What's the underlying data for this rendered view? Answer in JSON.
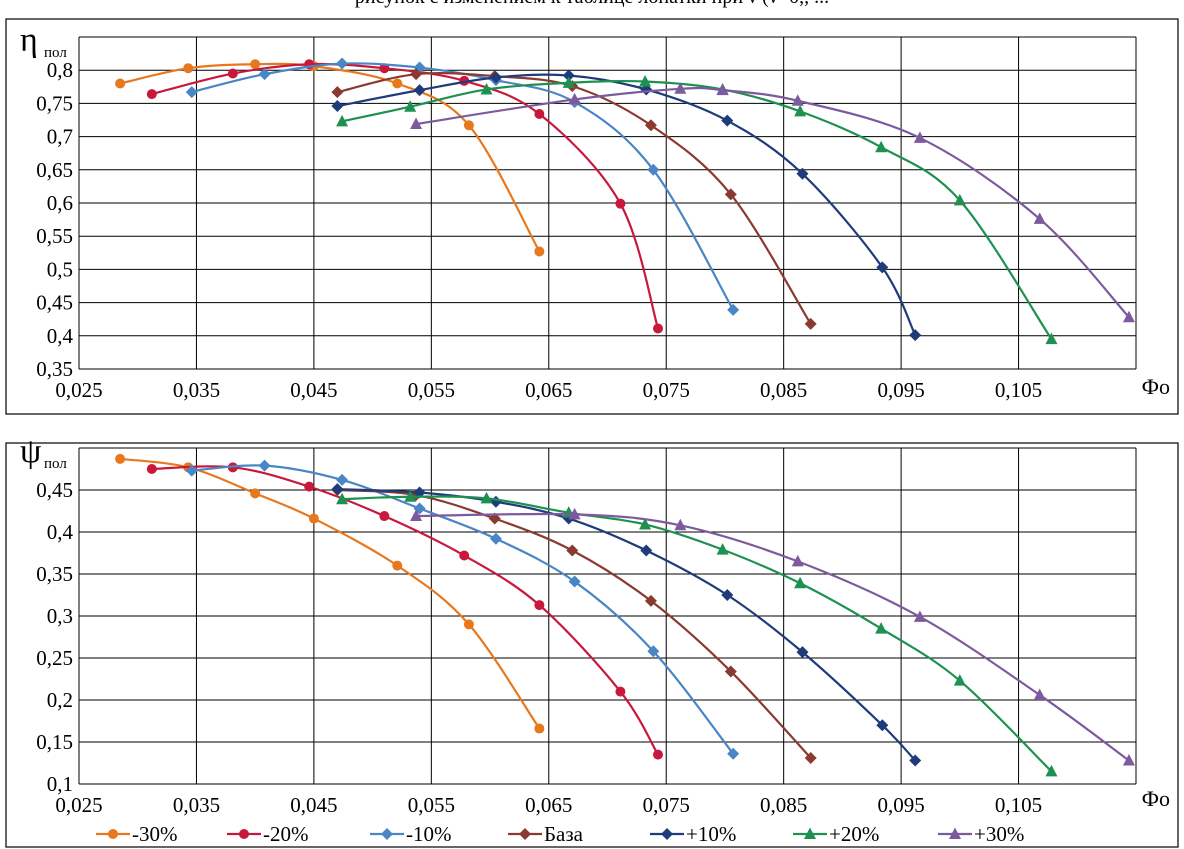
{
  "caption": "рисунок с изменением к таблице лопатки при ν (ν=0,,  ...",
  "colors": {
    "-30%": "#E8781E",
    "-20%": "#C8193C",
    "-10%": "#4A86C5",
    "База": "#8B3A32",
    "+10%": "#1F3C7A",
    "+20%": "#1E9150",
    "+30%": "#7D5A9E"
  },
  "chart_data": [
    {
      "type": "line",
      "ylabel_main": "η",
      "ylabel_sub": "пол",
      "xlabel": "Фо",
      "xlim": [
        0.025,
        0.115
      ],
      "ylim": [
        0.35,
        0.85
      ],
      "xticks": [
        "0,025",
        "0,035",
        "0,045",
        "0,055",
        "0,065",
        "0,075",
        "0,085",
        "0,095",
        "0,105"
      ],
      "yticks": [
        "0,35",
        "0,4",
        "0,45",
        "0,5",
        "0,55",
        "0,6",
        "0,65",
        "0,7",
        "0,75",
        "0,8"
      ],
      "grid": true,
      "series": [
        {
          "name": "-30%",
          "marker": "circle",
          "points": [
            [
              0.0285,
              0.78
            ],
            [
              0.0343,
              0.803
            ],
            [
              0.04,
              0.809
            ],
            [
              0.045,
              0.806
            ],
            [
              0.0521,
              0.78
            ],
            [
              0.0582,
              0.717
            ],
            [
              0.0642,
              0.527
            ]
          ]
        },
        {
          "name": "-20%",
          "marker": "circle",
          "points": [
            [
              0.0312,
              0.764
            ],
            [
              0.0381,
              0.795
            ],
            [
              0.0446,
              0.809
            ],
            [
              0.051,
              0.803
            ],
            [
              0.0578,
              0.784
            ],
            [
              0.0642,
              0.734
            ],
            [
              0.0711,
              0.599
            ],
            [
              0.0743,
              0.411
            ]
          ]
        },
        {
          "name": "-10%",
          "marker": "diamond",
          "points": [
            [
              0.0346,
              0.767
            ],
            [
              0.0408,
              0.794
            ],
            [
              0.0474,
              0.81
            ],
            [
              0.054,
              0.804
            ],
            [
              0.0605,
              0.785
            ],
            [
              0.0672,
              0.752
            ],
            [
              0.0739,
              0.65
            ],
            [
              0.0807,
              0.439
            ]
          ]
        },
        {
          "name": "База",
          "marker": "diamond",
          "points": [
            [
              0.047,
              0.767
            ],
            [
              0.0537,
              0.794
            ],
            [
              0.0604,
              0.791
            ],
            [
              0.067,
              0.776
            ],
            [
              0.0737,
              0.717
            ],
            [
              0.0805,
              0.613
            ],
            [
              0.0873,
              0.418
            ]
          ]
        },
        {
          "name": "+10%",
          "marker": "diamond",
          "points": [
            [
              0.047,
              0.746
            ],
            [
              0.054,
              0.77
            ],
            [
              0.0605,
              0.789
            ],
            [
              0.0667,
              0.792
            ],
            [
              0.0733,
              0.771
            ],
            [
              0.0802,
              0.724
            ],
            [
              0.0866,
              0.644
            ],
            [
              0.0934,
              0.503
            ],
            [
              0.0962,
              0.401
            ]
          ]
        },
        {
          "name": "+20%",
          "marker": "triangle",
          "points": [
            [
              0.0474,
              0.723
            ],
            [
              0.0532,
              0.745
            ],
            [
              0.0597,
              0.771
            ],
            [
              0.0667,
              0.781
            ],
            [
              0.0732,
              0.783
            ],
            [
              0.0798,
              0.771
            ],
            [
              0.0864,
              0.738
            ],
            [
              0.0933,
              0.684
            ],
            [
              0.1,
              0.604
            ],
            [
              0.1078,
              0.395
            ]
          ]
        },
        {
          "name": "+30%",
          "marker": "triangle",
          "points": [
            [
              0.0537,
              0.719
            ],
            [
              0.0672,
              0.756
            ],
            [
              0.0762,
              0.772
            ],
            [
              0.0798,
              0.77
            ],
            [
              0.0862,
              0.754
            ],
            [
              0.0966,
              0.698
            ],
            [
              0.1068,
              0.576
            ],
            [
              0.1144,
              0.428
            ]
          ]
        }
      ]
    },
    {
      "type": "line",
      "ylabel_main": "ψ",
      "ylabel_sub": "пол",
      "xlabel": "Фо",
      "xlim": [
        0.025,
        0.115
      ],
      "ylim": [
        0.1,
        0.5
      ],
      "xticks": [
        "0,025",
        "0,035",
        "0,045",
        "0,055",
        "0,065",
        "0,075",
        "0,085",
        "0,095",
        "0,105"
      ],
      "yticks": [
        "0,1",
        "0,15",
        "0,2",
        "0,25",
        "0,3",
        "0,35",
        "0,4",
        "0,45"
      ],
      "grid": true,
      "series": [
        {
          "name": "-30%",
          "marker": "circle",
          "points": [
            [
              0.0285,
              0.487
            ],
            [
              0.0343,
              0.477
            ],
            [
              0.04,
              0.446
            ],
            [
              0.045,
              0.416
            ],
            [
              0.0521,
              0.36
            ],
            [
              0.0582,
              0.29
            ],
            [
              0.0642,
              0.166
            ]
          ]
        },
        {
          "name": "-20%",
          "marker": "circle",
          "points": [
            [
              0.0312,
              0.475
            ],
            [
              0.0381,
              0.477
            ],
            [
              0.0446,
              0.454
            ],
            [
              0.051,
              0.419
            ],
            [
              0.0578,
              0.372
            ],
            [
              0.0642,
              0.313
            ],
            [
              0.0711,
              0.21
            ],
            [
              0.0743,
              0.135
            ]
          ]
        },
        {
          "name": "-10%",
          "marker": "diamond",
          "points": [
            [
              0.0346,
              0.473
            ],
            [
              0.0408,
              0.479
            ],
            [
              0.0474,
              0.462
            ],
            [
              0.054,
              0.428
            ],
            [
              0.0605,
              0.392
            ],
            [
              0.0672,
              0.341
            ],
            [
              0.0739,
              0.258
            ],
            [
              0.0807,
              0.136
            ]
          ]
        },
        {
          "name": "База",
          "marker": "diamond",
          "points": [
            [
              0.047,
              0.45
            ],
            [
              0.0537,
              0.444
            ],
            [
              0.0604,
              0.416
            ],
            [
              0.067,
              0.378
            ],
            [
              0.0737,
              0.318
            ],
            [
              0.0805,
              0.234
            ],
            [
              0.0873,
              0.131
            ]
          ]
        },
        {
          "name": "+10%",
          "marker": "diamond",
          "points": [
            [
              0.047,
              0.451
            ],
            [
              0.054,
              0.447
            ],
            [
              0.0605,
              0.436
            ],
            [
              0.0667,
              0.416
            ],
            [
              0.0733,
              0.378
            ],
            [
              0.0802,
              0.325
            ],
            [
              0.0866,
              0.257
            ],
            [
              0.0934,
              0.17
            ],
            [
              0.0962,
              0.128
            ]
          ]
        },
        {
          "name": "+20%",
          "marker": "triangle",
          "points": [
            [
              0.0474,
              0.439
            ],
            [
              0.0532,
              0.442
            ],
            [
              0.0597,
              0.44
            ],
            [
              0.0667,
              0.423
            ],
            [
              0.0732,
              0.409
            ],
            [
              0.0798,
              0.379
            ],
            [
              0.0864,
              0.339
            ],
            [
              0.0933,
              0.285
            ],
            [
              0.1,
              0.223
            ],
            [
              0.1078,
              0.115
            ]
          ]
        },
        {
          "name": "+30%",
          "marker": "triangle",
          "points": [
            [
              0.0537,
              0.419
            ],
            [
              0.0672,
              0.421
            ],
            [
              0.0762,
              0.408
            ],
            [
              0.0862,
              0.365
            ],
            [
              0.0966,
              0.299
            ],
            [
              0.1068,
              0.206
            ],
            [
              0.1144,
              0.128
            ]
          ]
        }
      ]
    }
  ],
  "legend": [
    "-30%",
    "-20%",
    "-10%",
    "База",
    "+10%",
    "+20%",
    "+30%"
  ]
}
